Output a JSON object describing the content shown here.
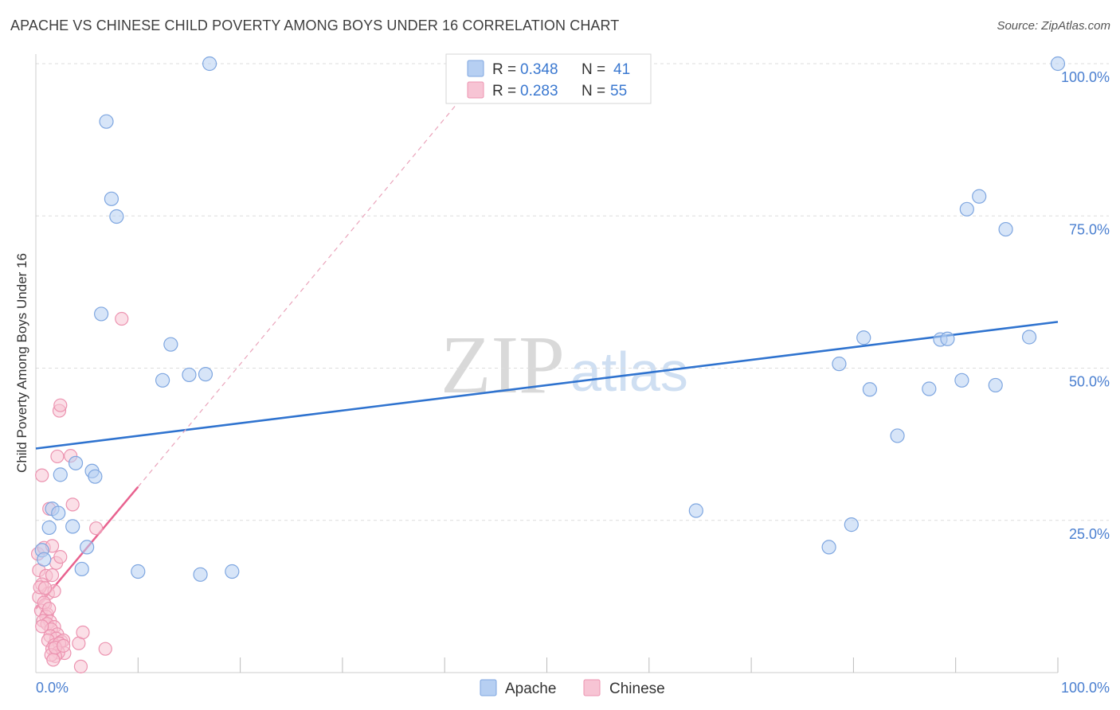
{
  "title": "APACHE VS CHINESE CHILD POVERTY AMONG BOYS UNDER 16 CORRELATION CHART",
  "source": "Source: ZipAtlas.com",
  "watermark": {
    "zip": "ZIP",
    "atlas": "atlas"
  },
  "colors": {
    "apache_fill": "#b6cff2",
    "apache_stroke": "#7ea6e0",
    "apache_line": "#2f73cf",
    "chinese_fill": "#f7c4d4",
    "chinese_stroke": "#ec93b0",
    "chinese_line": "#e8628f",
    "tick_text": "#4a7fd0",
    "grid": "#dddddd"
  },
  "legend": {
    "apache": {
      "r_label": "R =",
      "r_value": "0.348",
      "n_label": "N =",
      "n_value": "41"
    },
    "chinese": {
      "r_label": "R =",
      "r_value": "0.283",
      "n_label": "N =",
      "n_value": "55"
    }
  },
  "bottom_legend": {
    "apache": "Apache",
    "chinese": "Chinese"
  },
  "chart_data": {
    "type": "scatter",
    "title": "APACHE VS CHINESE CHILD POVERTY AMONG BOYS UNDER 16 CORRELATION CHART",
    "xlabel": "",
    "ylabel": "Child Poverty Among Boys Under 16",
    "xlim": [
      0,
      100
    ],
    "ylim": [
      0,
      100
    ],
    "x_tick_labels": [
      "0.0%",
      "100.0%"
    ],
    "y_tick_labels": [
      "25.0%",
      "50.0%",
      "75.0%",
      "100.0%"
    ],
    "y_tick_values": [
      25,
      50,
      75,
      100
    ],
    "series": [
      {
        "name": "Apache",
        "points": [
          [
            17.0,
            100.0
          ],
          [
            6.9,
            90.5
          ],
          [
            7.4,
            77.8
          ],
          [
            7.9,
            74.9
          ],
          [
            6.4,
            58.9
          ],
          [
            13.2,
            53.9
          ],
          [
            12.4,
            48.0
          ],
          [
            15.0,
            48.9
          ],
          [
            16.6,
            49.0
          ],
          [
            5.5,
            33.1
          ],
          [
            3.9,
            34.4
          ],
          [
            5.8,
            32.2
          ],
          [
            2.4,
            32.5
          ],
          [
            1.6,
            26.9
          ],
          [
            2.2,
            26.2
          ],
          [
            1.3,
            23.8
          ],
          [
            3.6,
            24.0
          ],
          [
            5.0,
            20.6
          ],
          [
            0.6,
            20.1
          ],
          [
            4.5,
            17.0
          ],
          [
            10.0,
            16.6
          ],
          [
            16.1,
            16.1
          ],
          [
            19.2,
            16.6
          ],
          [
            0.8,
            18.6
          ],
          [
            64.6,
            26.6
          ],
          [
            77.6,
            20.6
          ],
          [
            79.8,
            24.3
          ],
          [
            81.0,
            55.0
          ],
          [
            78.6,
            50.7
          ],
          [
            81.6,
            46.5
          ],
          [
            84.3,
            38.9
          ],
          [
            87.4,
            46.6
          ],
          [
            88.5,
            54.7
          ],
          [
            89.2,
            54.8
          ],
          [
            90.6,
            48.0
          ],
          [
            91.1,
            76.1
          ],
          [
            92.3,
            78.2
          ],
          [
            93.9,
            47.2
          ],
          [
            94.9,
            72.8
          ],
          [
            97.2,
            55.1
          ],
          [
            100.0,
            100.0
          ]
        ],
        "trend": {
          "x": [
            0,
            100
          ],
          "y": [
            36.8,
            57.6
          ]
        }
      },
      {
        "name": "Chinese",
        "points": [
          [
            0.2,
            19.5
          ],
          [
            0.8,
            20.5
          ],
          [
            1.6,
            20.8
          ],
          [
            2.0,
            18.0
          ],
          [
            2.4,
            19.0
          ],
          [
            0.3,
            16.8
          ],
          [
            1.0,
            15.9
          ],
          [
            1.6,
            16.0
          ],
          [
            0.6,
            14.5
          ],
          [
            1.2,
            13.0
          ],
          [
            1.8,
            13.4
          ],
          [
            0.3,
            12.4
          ],
          [
            0.9,
            11.1
          ],
          [
            0.5,
            10.2
          ],
          [
            1.1,
            9.6
          ],
          [
            1.0,
            9.2
          ],
          [
            0.7,
            8.5
          ],
          [
            1.4,
            8.4
          ],
          [
            1.1,
            8.0
          ],
          [
            1.8,
            7.5
          ],
          [
            1.5,
            7.1
          ],
          [
            2.1,
            6.3
          ],
          [
            1.4,
            6.0
          ],
          [
            2.0,
            5.6
          ],
          [
            1.2,
            5.3
          ],
          [
            2.5,
            5.1
          ],
          [
            2.7,
            5.3
          ],
          [
            1.8,
            4.5
          ],
          [
            2.3,
            4.8
          ],
          [
            1.6,
            3.9
          ],
          [
            2.8,
            3.2
          ],
          [
            2.2,
            3.3
          ],
          [
            1.9,
            2.7
          ],
          [
            1.5,
            2.9
          ],
          [
            1.7,
            2.1
          ],
          [
            4.2,
            4.8
          ],
          [
            4.6,
            6.6
          ],
          [
            6.8,
            3.9
          ],
          [
            4.4,
            1.0
          ],
          [
            5.9,
            23.7
          ],
          [
            3.6,
            27.6
          ],
          [
            1.3,
            26.9
          ],
          [
            0.6,
            32.4
          ],
          [
            2.1,
            35.5
          ],
          [
            3.4,
            35.6
          ],
          [
            2.3,
            43.0
          ],
          [
            2.4,
            43.9
          ],
          [
            8.4,
            58.1
          ],
          [
            0.4,
            14.0
          ],
          [
            0.8,
            11.5
          ],
          [
            1.3,
            10.5
          ],
          [
            0.6,
            7.6
          ],
          [
            1.9,
            4.1
          ],
          [
            2.7,
            4.4
          ],
          [
            0.9,
            13.9
          ]
        ],
        "trend_solid": {
          "x": [
            0,
            10
          ],
          "y": [
            10.5,
            30.5
          ]
        },
        "trend_dashed": {
          "x": [
            10,
            41
          ],
          "y": [
            30.5,
            93
          ]
        }
      }
    ],
    "legend": [
      {
        "name": "Apache",
        "R": 0.348,
        "N": 41
      },
      {
        "name": "Chinese",
        "R": 0.283,
        "N": 55
      }
    ]
  }
}
